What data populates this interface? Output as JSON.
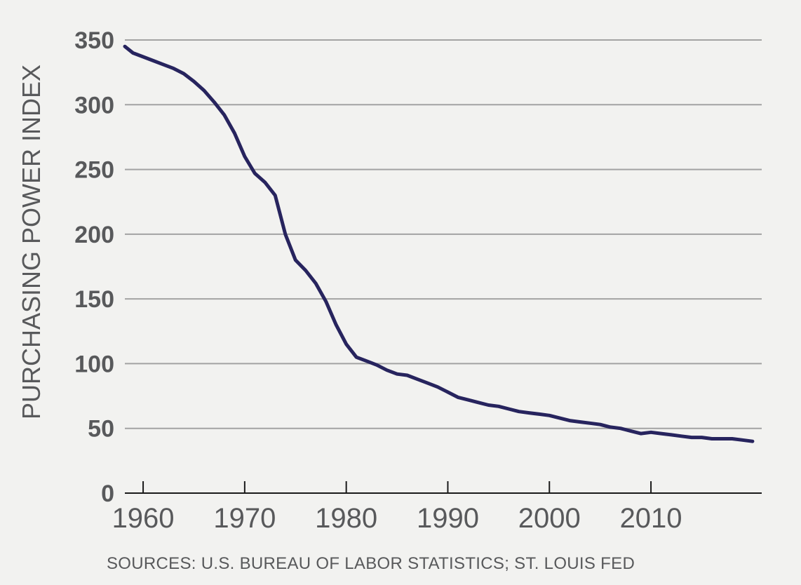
{
  "chart_data": {
    "type": "line",
    "title": "",
    "xlabel": "",
    "ylabel": "PURCHASING POWER INDEX",
    "xlim": [
      1958.2,
      2020
    ],
    "ylim": [
      0,
      350
    ],
    "y_ticks": [
      "0",
      "50",
      "100",
      "150",
      "200",
      "250",
      "300",
      "350"
    ],
    "x_ticks": [
      "1960",
      "1970",
      "1980",
      "1990",
      "2000",
      "2010"
    ],
    "grid": true,
    "legend": "none",
    "line_color": "#27245e",
    "grid_color": "#a3a3a3",
    "series": [
      {
        "x": [
          1958.2,
          1959,
          1960,
          1961,
          1962,
          1963,
          1964,
          1965,
          1966,
          1967,
          1968,
          1969,
          1970,
          1971,
          1972,
          1973,
          1974,
          1975,
          1976,
          1977,
          1978,
          1979,
          1980,
          1981,
          1982,
          1983,
          1984,
          1985,
          1986,
          1987,
          1988,
          1989,
          1990,
          1991,
          1992,
          1993,
          1994,
          1995,
          1996,
          1997,
          1998,
          1999,
          2000,
          2001,
          2002,
          2003,
          2004,
          2005,
          2006,
          2007,
          2008,
          2009,
          2010,
          2011,
          2012,
          2013,
          2014,
          2015,
          2016,
          2017,
          2018,
          2019,
          2020
        ],
        "y": [
          345,
          340,
          337,
          334,
          331,
          328,
          324,
          318,
          311,
          302,
          292,
          278,
          260,
          247,
          240,
          230,
          200,
          180,
          172,
          162,
          148,
          130,
          115,
          105,
          102,
          99,
          95,
          92,
          91,
          88,
          85,
          82,
          78,
          74,
          72,
          70,
          68,
          67,
          65,
          63,
          62,
          61,
          60,
          58,
          56,
          55,
          54,
          53,
          51,
          50,
          48,
          46,
          47,
          46,
          45,
          44,
          43,
          43,
          42,
          42,
          42,
          41,
          40
        ]
      }
    ],
    "source": "SOURCES: U.S. BUREAU OF LABOR STATISTICS; ST. LOUIS FED"
  }
}
